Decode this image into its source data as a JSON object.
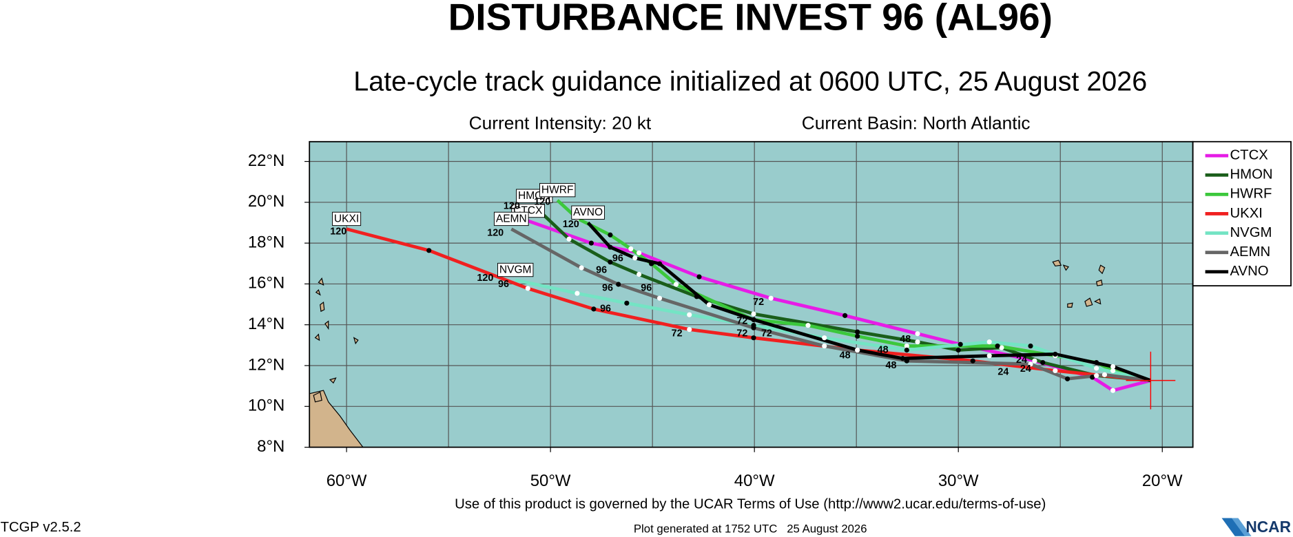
{
  "chart_data": {
    "type": "line",
    "title": "DISTURBANCE INVEST 96 (AL96)",
    "subtitle": "Late-cycle track guidance initialized at 0600 UTC, 25 August 2026",
    "info": [
      "Current Intensity: 20 kt",
      "Current Basin: North Atlantic"
    ],
    "xlim": [
      -61.82,
      -18.5
    ],
    "ylim": [
      8,
      22.97
    ],
    "xticks": [
      {
        "value": -60,
        "label": "60°W"
      },
      {
        "value": -50,
        "label": "50°W"
      },
      {
        "value": -40,
        "label": "40°W"
      },
      {
        "value": -30,
        "label": "30°W"
      },
      {
        "value": -20,
        "label": "20°W"
      }
    ],
    "xgrid": [
      -60,
      -55,
      -50,
      -45,
      -40,
      -35,
      -30,
      -25,
      -20
    ],
    "yticks": [
      {
        "value": 8,
        "label": "8°N"
      },
      {
        "value": 10,
        "label": "10°N"
      },
      {
        "value": 12,
        "label": "12°N"
      },
      {
        "value": 14,
        "label": "14°N"
      },
      {
        "value": 16,
        "label": "16°N"
      },
      {
        "value": 18,
        "label": "18°N"
      },
      {
        "value": 20,
        "label": "20°N"
      },
      {
        "value": 22,
        "label": "22°N"
      }
    ],
    "grid": true,
    "legend": "right",
    "series": [
      {
        "name": "CTCX",
        "color": "#e61ce6",
        "x": [
          -20.57,
          -22.42,
          -23.43,
          -26.26,
          -29.9,
          -32.0,
          -35.56,
          -39.19,
          -42.71,
          -45.66,
          -48.0,
          -51.11
        ],
        "y": [
          11.27,
          10.78,
          11.43,
          12.23,
          13.04,
          13.56,
          14.45,
          15.3,
          16.35,
          17.52,
          18.0,
          19.09
        ]
      },
      {
        "name": "HMON",
        "color": "#1a5e1a",
        "x": [
          -20.57,
          -23.23,
          -25.86,
          -27.88,
          -30.0,
          -32.0,
          -34.95,
          -40.04,
          -42.83,
          -45.66,
          -47.07,
          -49.09,
          -50.79
        ],
        "y": [
          11.27,
          11.51,
          12.15,
          12.88,
          12.76,
          13.16,
          13.65,
          14.53,
          15.38,
          16.47,
          17.07,
          18.2,
          19.81
        ]
      },
      {
        "name": "HWRF",
        "color": "#3cc83c",
        "x": [
          -20.57,
          -22.42,
          -23.23,
          -25.25,
          -28.08,
          -32.53,
          -34.95,
          -37.37,
          -40.04,
          -43.84,
          -45.05,
          -46.06,
          -47.07,
          -48.69,
          -49.66
        ],
        "y": [
          11.27,
          11.75,
          12.15,
          12.48,
          12.96,
          12.96,
          13.44,
          13.97,
          14.25,
          15.98,
          16.99,
          17.72,
          18.4,
          19.21,
          20.1
        ]
      },
      {
        "name": "UKXI",
        "color": "#f02020",
        "x": [
          -20.57,
          -25.25,
          -29.29,
          -34.95,
          -40.04,
          -43.19,
          -47.88,
          -51.11,
          -55.96,
          -60.0
        ],
        "y": [
          11.27,
          11.75,
          12.23,
          12.76,
          13.36,
          13.77,
          14.77,
          15.78,
          17.64,
          18.69
        ]
      },
      {
        "name": "NVGM",
        "color": "#74e4c4",
        "x": [
          -20.57,
          -23.23,
          -26.46,
          -28.48,
          -32.53,
          -36.57,
          -40.04,
          -43.19,
          -46.26,
          -48.69,
          -51.72
        ],
        "y": [
          11.27,
          11.87,
          12.96,
          13.16,
          12.76,
          13.36,
          13.97,
          14.49,
          15.06,
          15.54,
          16.19
        ]
      },
      {
        "name": "AEMN",
        "color": "#666666",
        "x": [
          -20.57,
          -22.83,
          -24.65,
          -26.46,
          -32.53,
          -36.57,
          -40.04,
          -44.65,
          -46.67,
          -48.48,
          -51.92
        ],
        "y": [
          11.27,
          11.55,
          11.35,
          12.07,
          12.23,
          12.96,
          13.85,
          15.3,
          15.98,
          16.79,
          18.69
        ]
      },
      {
        "name": "AVNO",
        "color": "#000000",
        "x": [
          -20.57,
          -22.42,
          -25.25,
          -28.48,
          -32.73,
          -34.95,
          -40.04,
          -42.22,
          -44.65,
          -45.86,
          -47.07,
          -48.16
        ],
        "y": [
          11.27,
          11.95,
          12.56,
          12.48,
          12.35,
          12.76,
          14.25,
          14.98,
          16.99,
          17.27,
          17.8,
          19.0
        ]
      }
    ],
    "hour_labels": [
      {
        "label": "120",
        "lon": -60.4,
        "lat": 18.56
      },
      {
        "label": "120",
        "lon": -53.2,
        "lat": 16.27
      },
      {
        "label": "96",
        "lon": -52.3,
        "lat": 15.98
      },
      {
        "label": "120",
        "lon": -52.7,
        "lat": 18.48
      },
      {
        "label": "120",
        "lon": -51.9,
        "lat": 19.81
      },
      {
        "label": "120",
        "lon": -50.4,
        "lat": 20.0
      },
      {
        "label": "120",
        "lon": -49.0,
        "lat": 18.9
      },
      {
        "label": "96",
        "lon": -47.5,
        "lat": 16.67
      },
      {
        "label": "96",
        "lon": -47.2,
        "lat": 15.78
      },
      {
        "label": "96",
        "lon": -45.3,
        "lat": 15.78
      },
      {
        "label": "96",
        "lon": -47.3,
        "lat": 14.77
      },
      {
        "label": "96",
        "lon": -46.7,
        "lat": 17.23
      },
      {
        "label": "72",
        "lon": -43.8,
        "lat": 13.56
      },
      {
        "label": "72",
        "lon": -39.8,
        "lat": 15.1
      },
      {
        "label": "72",
        "lon": -40.6,
        "lat": 14.17
      },
      {
        "label": "72",
        "lon": -40.6,
        "lat": 13.56
      },
      {
        "label": "72",
        "lon": -39.4,
        "lat": 13.56
      },
      {
        "label": "48",
        "lon": -35.56,
        "lat": 12.48
      },
      {
        "label": "48",
        "lon": -33.7,
        "lat": 12.76
      },
      {
        "label": "48",
        "lon": -33.3,
        "lat": 12.0
      },
      {
        "label": "48",
        "lon": -32.6,
        "lat": 13.28
      },
      {
        "label": "24",
        "lon": -27.8,
        "lat": 11.67
      },
      {
        "label": "24",
        "lon": -26.7,
        "lat": 11.83
      },
      {
        "label": "24",
        "lon": -26.9,
        "lat": 12.27
      }
    ],
    "footer": {
      "terms": "Use of this product is governed by the UCAR Terms of Use (http://www2.ucar.edu/terms-of-use)",
      "version": "TCGP v2.5.2",
      "generated": "Plot generated at 1752 UTC   25 August 2026",
      "logo": "NCAR"
    }
  }
}
